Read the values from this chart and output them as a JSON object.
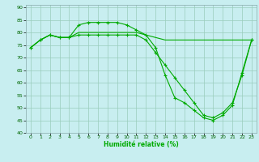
{
  "title": "",
  "xlabel": "Humidité relative (%)",
  "ylabel": "",
  "bg_color": "#c8eef0",
  "grid_color": "#99ccbb",
  "line_color": "#00aa00",
  "marker": "+",
  "xlim": [
    -0.5,
    23.5
  ],
  "ylim": [
    40,
    91
  ],
  "yticks": [
    40,
    45,
    50,
    55,
    60,
    65,
    70,
    75,
    80,
    85,
    90
  ],
  "xticks": [
    0,
    1,
    2,
    3,
    4,
    5,
    6,
    7,
    8,
    9,
    10,
    11,
    12,
    13,
    14,
    15,
    16,
    17,
    18,
    19,
    20,
    21,
    22,
    23
  ],
  "line1_x": [
    0,
    1,
    2,
    3,
    4,
    5,
    6,
    7,
    8,
    9,
    10,
    11,
    12,
    13,
    14,
    15,
    16,
    17,
    18,
    19,
    20,
    21,
    22,
    23
  ],
  "line1_y": [
    74,
    77,
    79,
    78,
    78,
    83,
    84,
    84,
    84,
    84,
    83,
    81,
    79,
    74,
    63,
    54,
    52,
    49,
    46,
    45,
    47,
    51,
    64,
    77
  ],
  "line2_x": [
    0,
    1,
    2,
    3,
    4,
    5,
    6,
    7,
    8,
    9,
    10,
    11,
    12,
    13,
    14,
    15,
    16,
    17,
    18,
    19,
    20,
    21,
    22,
    23
  ],
  "line2_y": [
    74,
    77,
    79,
    78,
    78,
    79,
    79,
    79,
    79,
    79,
    79,
    79,
    77,
    72,
    67,
    62,
    57,
    52,
    47,
    46,
    48,
    52,
    63,
    77
  ],
  "line3_x": [
    0,
    1,
    2,
    3,
    4,
    5,
    6,
    7,
    8,
    9,
    10,
    11,
    12,
    13,
    14,
    15,
    16,
    17,
    18,
    19,
    20,
    21,
    22,
    23
  ],
  "line3_y": [
    74,
    77,
    79,
    78,
    78,
    80,
    80,
    80,
    80,
    80,
    80,
    80,
    79,
    78,
    77,
    77,
    77,
    77,
    77,
    77,
    77,
    77,
    77,
    77
  ]
}
